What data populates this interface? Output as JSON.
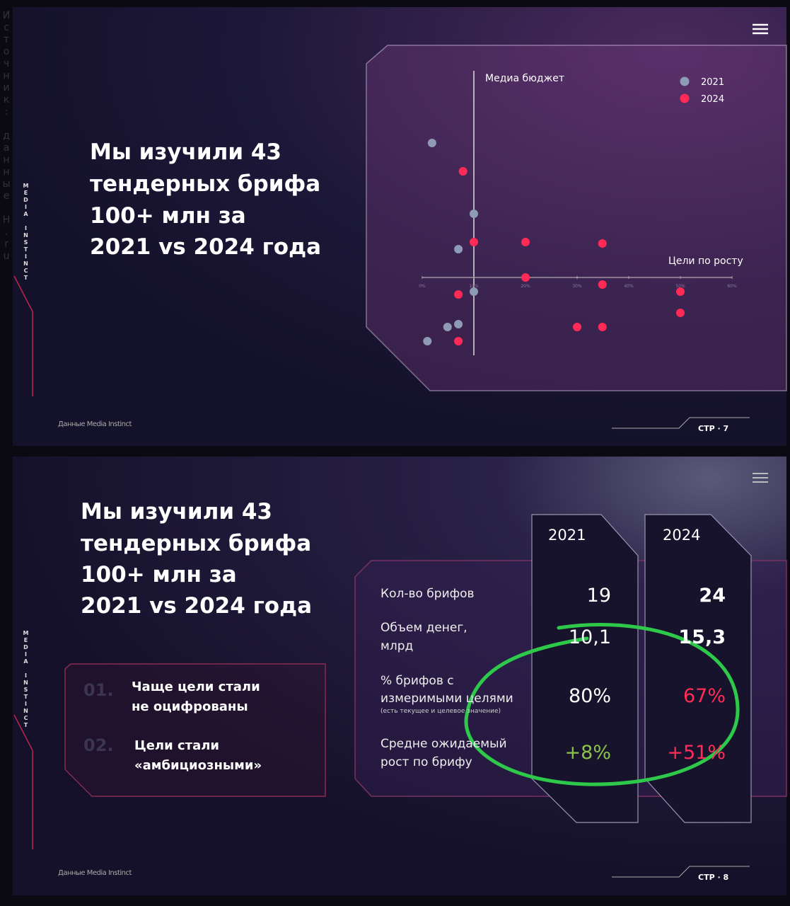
{
  "source_note": "Источник: данные Н.ru",
  "slides": [
    {
      "brand": "MEDIA INSTINCT",
      "title_lines": [
        "Мы изучили 43",
        "тендерных брифа",
        "100+ млн за",
        "2021 vs 2024 года"
      ],
      "footer": "Данные Media Instinct",
      "page": "СТР · 7"
    },
    {
      "brand": "MEDIA INSTINCT",
      "title_lines": [
        "Мы изучили 43",
        "тендерных брифа",
        "100+ млн за",
        "2021 vs 2024 года"
      ],
      "footer": "Данные Media Instinct",
      "page": "СТР · 8"
    }
  ],
  "chart_data": {
    "type": "scatter",
    "x_label": "Цели по росту",
    "y_label": "Медиа бюджет",
    "xlim": [
      0,
      60
    ],
    "ylim": [
      -2.75,
      7.3
    ],
    "xticks": [
      {
        "value": 0,
        "label": "0%"
      },
      {
        "value": 10,
        "label": "10%"
      },
      {
        "value": 20,
        "label": "20%"
      },
      {
        "value": 30,
        "label": "30%"
      },
      {
        "value": 40,
        "label": "40%"
      },
      {
        "value": 50,
        "label": "50%"
      },
      {
        "value": 60,
        "label": "60%"
      }
    ],
    "series": [
      {
        "name": "2021",
        "color": "#8e9bb5",
        "x": [
          1.9,
          10,
          7,
          10,
          7,
          4.9,
          1
        ],
        "values": [
          4.75,
          2.25,
          1,
          -0.5,
          -1.65,
          -1.75,
          -2.25
        ]
      },
      {
        "name": "2024",
        "color": "#ff2a55",
        "x": [
          7.9,
          10,
          20,
          34.9,
          20,
          34.9,
          50,
          7,
          50,
          30,
          34.9,
          7
        ],
        "values": [
          3.75,
          1.25,
          1.25,
          1.2,
          0,
          -0.25,
          -0.5,
          -0.6,
          -1.25,
          -1.75,
          -1.75,
          -2.25
        ]
      }
    ]
  },
  "table": {
    "columns": [
      "2021",
      "2024"
    ],
    "rows": [
      {
        "label_lines": [
          "Кол-во брифов"
        ],
        "values": [
          "19",
          "24"
        ]
      },
      {
        "label_lines": [
          "Объем денег,",
          "млрд"
        ],
        "values": [
          "10,1",
          "15,3"
        ]
      },
      {
        "label_lines": [
          "% брифов с",
          "измеримыми целями"
        ],
        "note": "(есть текущее и целевое значение)",
        "values": [
          "80%",
          "67%"
        ]
      },
      {
        "label_lines": [
          "Средне ожидаемый",
          "рост по брифу"
        ],
        "values": [
          "+8%",
          "+51%"
        ]
      }
    ]
  },
  "findings": [
    {
      "number": "01.",
      "text_lines": [
        "Чаще цели стали",
        "не оцифрованы"
      ]
    },
    {
      "number": "02.",
      "text_lines": [
        "Цели стали",
        "«амбициозными»"
      ]
    }
  ]
}
